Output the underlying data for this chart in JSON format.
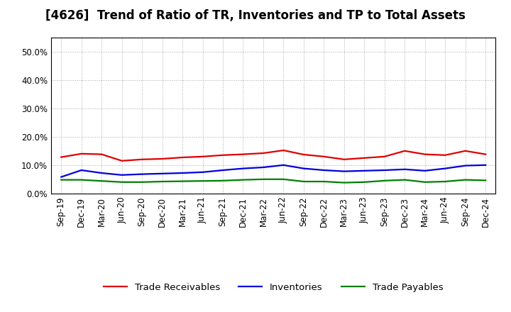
{
  "title": "[4626]  Trend of Ratio of TR, Inventories and TP to Total Assets",
  "ylim": [
    0.0,
    0.55
  ],
  "yticks": [
    0.0,
    0.1,
    0.2,
    0.3,
    0.4,
    0.5
  ],
  "x_labels": [
    "Sep-19",
    "Dec-19",
    "Mar-20",
    "Jun-20",
    "Sep-20",
    "Dec-20",
    "Mar-21",
    "Jun-21",
    "Sep-21",
    "Dec-21",
    "Mar-22",
    "Jun-22",
    "Sep-22",
    "Dec-22",
    "Mar-23",
    "Jun-23",
    "Sep-23",
    "Dec-23",
    "Mar-24",
    "Jun-24",
    "Sep-24",
    "Dec-24"
  ],
  "trade_receivables": [
    0.128,
    0.14,
    0.138,
    0.115,
    0.12,
    0.122,
    0.127,
    0.13,
    0.135,
    0.138,
    0.142,
    0.152,
    0.137,
    0.13,
    0.12,
    0.125,
    0.13,
    0.15,
    0.138,
    0.135,
    0.15,
    0.138
  ],
  "inventories": [
    0.058,
    0.082,
    0.072,
    0.065,
    0.068,
    0.07,
    0.072,
    0.075,
    0.082,
    0.088,
    0.092,
    0.1,
    0.088,
    0.082,
    0.078,
    0.08,
    0.082,
    0.085,
    0.08,
    0.088,
    0.098,
    0.1
  ],
  "trade_payables": [
    0.048,
    0.048,
    0.044,
    0.04,
    0.04,
    0.042,
    0.043,
    0.044,
    0.045,
    0.048,
    0.05,
    0.05,
    0.042,
    0.042,
    0.038,
    0.04,
    0.045,
    0.048,
    0.04,
    0.042,
    0.048,
    0.046
  ],
  "tr_color": "#e00000",
  "inv_color": "#0000dd",
  "tp_color": "#008000",
  "background_color": "#ffffff",
  "grid_color": "#aaaaaa",
  "title_fontsize": 12,
  "tick_fontsize": 8.5,
  "legend_fontsize": 9.5,
  "linewidth": 1.6
}
